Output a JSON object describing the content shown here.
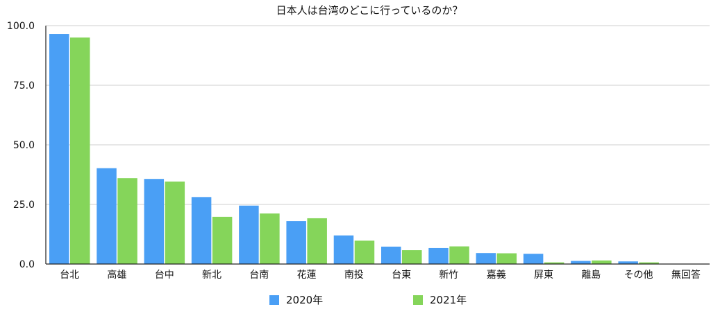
{
  "chart_data": {
    "type": "bar",
    "title": "日本人は台湾のどこに行っているのか？",
    "xlabel": "",
    "ylabel": "",
    "ylim": [
      0,
      100
    ],
    "yticks": [
      "0.0",
      "25.0",
      "50.0",
      "75.0",
      "100.0"
    ],
    "grid": true,
    "legend_position": "bottom",
    "categories": [
      "台北",
      "高雄",
      "台中",
      "新北",
      "台南",
      "花蓮",
      "南投",
      "台東",
      "新竹",
      "嘉義",
      "屏東",
      "離島",
      "その他",
      "無回答"
    ],
    "series": [
      {
        "name": "2020年",
        "color": "#4a9ff5",
        "values": [
          96.5,
          40.2,
          35.7,
          28.1,
          24.5,
          18.0,
          12.0,
          7.3,
          6.7,
          4.6,
          4.3,
          1.3,
          1.1,
          0
        ]
      },
      {
        "name": "2021年",
        "color": "#85d55a",
        "values": [
          95.0,
          36.0,
          34.6,
          19.8,
          21.2,
          19.2,
          9.8,
          5.8,
          7.4,
          4.5,
          0.7,
          1.5,
          0.7,
          0
        ]
      }
    ]
  }
}
